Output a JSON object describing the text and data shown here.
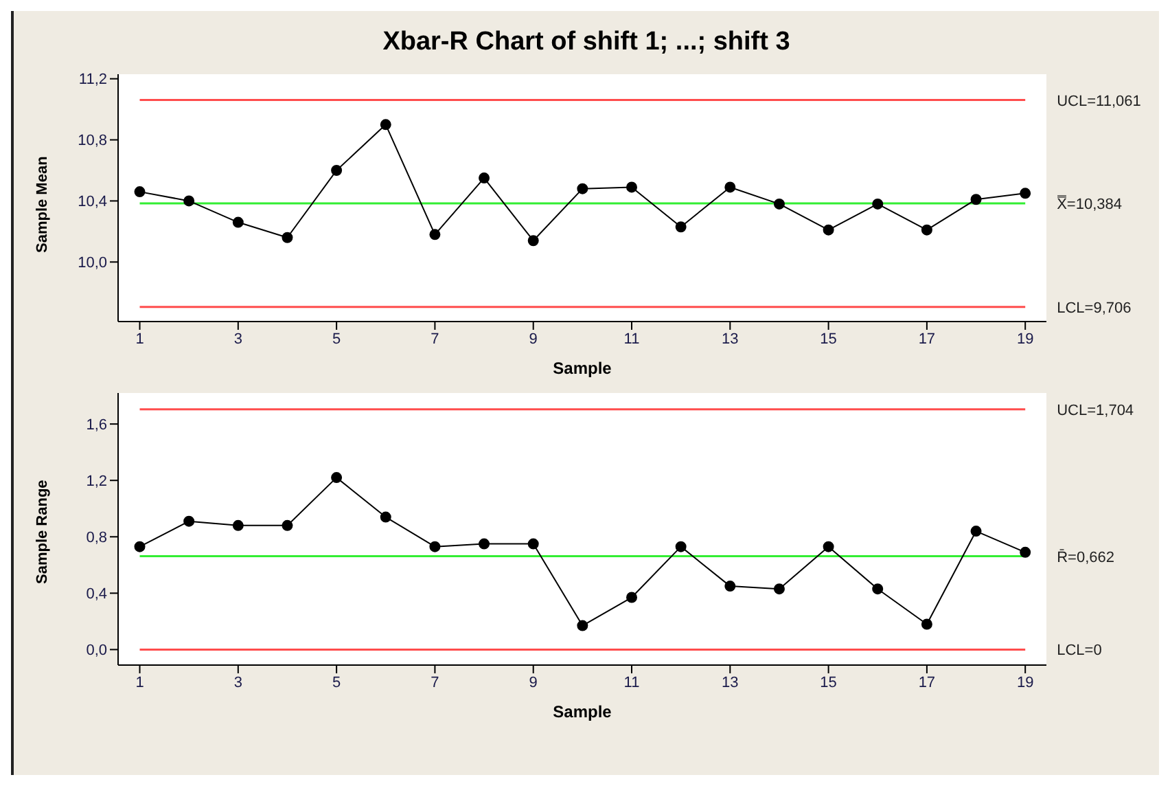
{
  "chart_data": [
    {
      "type": "line",
      "title": "Xbar-R Chart of shift 1; ...; shift 3",
      "xlabel": "Sample",
      "ylabel": "Sample Mean",
      "marker": "circle",
      "x": [
        1,
        2,
        3,
        4,
        5,
        6,
        7,
        8,
        9,
        10,
        11,
        12,
        13,
        14,
        15,
        16,
        17,
        18,
        19
      ],
      "series": [
        {
          "color": "#000000",
          "values": [
            10.46,
            10.4,
            10.26,
            10.16,
            10.6,
            10.9,
            10.18,
            10.55,
            10.14,
            10.48,
            10.49,
            10.23,
            10.49,
            10.38,
            10.21,
            10.38,
            10.21,
            10.41,
            10.45
          ]
        }
      ],
      "xlim": [
        0.56,
        19.43
      ],
      "xticks": [
        1,
        3,
        5,
        7,
        9,
        11,
        13,
        15,
        17,
        19
      ],
      "ylim": [
        9.61,
        11.23
      ],
      "yticks": [
        {
          "value": 10,
          "label": "10,0"
        },
        {
          "value": 10.4,
          "label": "10,4"
        },
        {
          "value": 10.8,
          "label": "10,8"
        },
        {
          "value": 11.2,
          "label": "11,2"
        }
      ],
      "ref_lines": [
        {
          "axis": "y",
          "value": 11.061,
          "label": "UCL=11,061",
          "color": "#ff4d4d"
        },
        {
          "axis": "y",
          "value": 10.384,
          "label": "X̿=10,384",
          "color": "#33ee33"
        },
        {
          "axis": "y",
          "value": 9.706,
          "label": "LCL=9,706",
          "color": "#ff4d4d"
        }
      ]
    },
    {
      "type": "line",
      "xlabel": "Sample",
      "ylabel": "Sample Range",
      "marker": "circle",
      "x": [
        1,
        2,
        3,
        4,
        5,
        6,
        7,
        8,
        9,
        10,
        11,
        12,
        13,
        14,
        15,
        16,
        17,
        18,
        19
      ],
      "series": [
        {
          "color": "#000000",
          "values": [
            0.73,
            0.91,
            0.88,
            0.88,
            1.22,
            0.94,
            0.73,
            0.75,
            0.75,
            0.17,
            0.37,
            0.73,
            0.45,
            0.43,
            0.73,
            0.43,
            0.18,
            0.84,
            0.69
          ]
        }
      ],
      "xlim": [
        0.56,
        19.43
      ],
      "xticks": [
        1,
        3,
        5,
        7,
        9,
        11,
        13,
        15,
        17,
        19
      ],
      "ylim": [
        -0.11,
        1.82
      ],
      "yticks": [
        {
          "value": 0,
          "label": "0,0"
        },
        {
          "value": 0.4,
          "label": "0,4"
        },
        {
          "value": 0.8,
          "label": "0,8"
        },
        {
          "value": 1.2,
          "label": "1,2"
        },
        {
          "value": 1.6,
          "label": "1,6"
        }
      ],
      "ref_lines": [
        {
          "axis": "y",
          "value": 1.704,
          "label": "UCL=1,704",
          "color": "#ff4d4d"
        },
        {
          "axis": "y",
          "value": 0.662,
          "label": "R̄=0,662",
          "color": "#33ee33"
        },
        {
          "axis": "y",
          "value": 0,
          "label": "LCL=0",
          "color": "#ff4d4d"
        }
      ]
    }
  ]
}
